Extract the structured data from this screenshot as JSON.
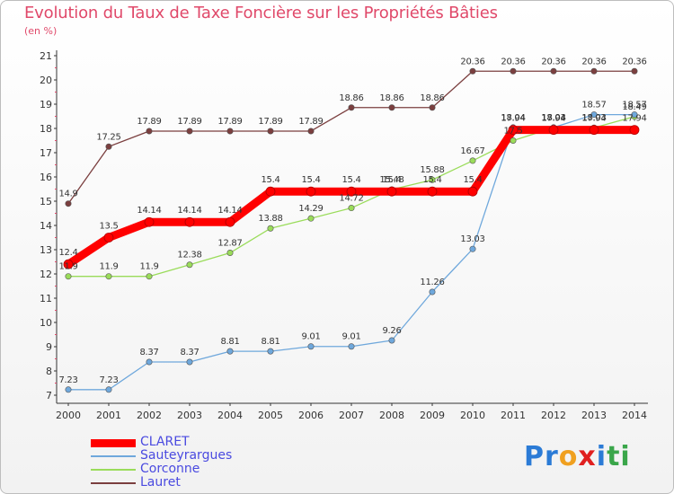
{
  "title": "Evolution du Taux de Taxe Foncière sur les Propriétés Bâties",
  "subtitle": "(en %)",
  "logo": {
    "text": "Proxiti",
    "letter_colors": [
      "#2b7bd6",
      "#2b7bd6",
      "#f0a020",
      "#e02020",
      "#2b7bd6",
      "#3aa64a",
      "#3aa64a"
    ]
  },
  "chart_data": {
    "type": "line",
    "title": "Evolution du Taux de Taxe Foncière sur les Propriétés Bâties",
    "ylabel": "(en %)",
    "xlabel": "",
    "ylim": [
      7,
      21
    ],
    "grid": false,
    "x": [
      "2000",
      "2001",
      "2002",
      "2003",
      "2004",
      "2005",
      "2006",
      "2007",
      "2008",
      "2009",
      "2010",
      "2011",
      "2012",
      "2013",
      "2014"
    ],
    "series": [
      {
        "name": "CLARET",
        "color": "#ff0000",
        "values": [
          12.4,
          13.5,
          14.14,
          14.14,
          14.14,
          15.4,
          15.4,
          15.4,
          15.4,
          15.4,
          15.4,
          17.94,
          17.94,
          17.94,
          17.94
        ],
        "labels": [
          "12.4",
          "13.5",
          "14.14",
          "14.14",
          "14.14",
          "15.4",
          "15.4",
          "15.4",
          "15.4",
          "15.4",
          "15.4",
          "17.94",
          "17.94",
          "17.94",
          "17.94"
        ]
      },
      {
        "name": "Sauteyrargues",
        "color": "#6fa8dc",
        "values": [
          7.23,
          7.23,
          8.37,
          8.37,
          8.81,
          8.81,
          9.01,
          9.01,
          9.26,
          11.26,
          13.03,
          18.04,
          18.04,
          18.57,
          18.57
        ],
        "labels": [
          "7.23",
          "7.23",
          "8.37",
          "8.37",
          "8.81",
          "8.81",
          "9.01",
          "9.01",
          "9.26",
          "11.26",
          "13.03",
          "18.04",
          "18.04",
          "18.57",
          "18.57"
        ]
      },
      {
        "name": "Corconne",
        "color": "#9adc5a",
        "values": [
          11.9,
          11.9,
          11.9,
          12.38,
          12.87,
          13.88,
          14.29,
          14.72,
          15.48,
          15.88,
          16.67,
          17.5,
          18.03,
          18.03,
          18.49
        ],
        "labels": [
          "11.9",
          "11.9",
          "11.9",
          "12.38",
          "12.87",
          "13.88",
          "14.29",
          "14.72",
          "15.48",
          "15.88",
          "16.67",
          "17.5",
          "18.03",
          "18.03",
          "18.49"
        ]
      },
      {
        "name": "Lauret",
        "color": "#7b3f3f",
        "values": [
          14.9,
          17.25,
          17.89,
          17.89,
          17.89,
          17.89,
          17.89,
          18.86,
          18.86,
          18.86,
          20.36,
          20.36,
          20.36,
          20.36,
          20.36
        ],
        "labels": [
          "14.9",
          "17.25",
          "17.89",
          "17.89",
          "17.89",
          "17.89",
          "17.89",
          "18.86",
          "18.86",
          "18.86",
          "20.36",
          "20.36",
          "20.36",
          "20.36",
          "20.36"
        ]
      }
    ],
    "yticks": [
      "7",
      "8",
      "9",
      "10",
      "11",
      "12",
      "13",
      "14",
      "15",
      "16",
      "17",
      "18",
      "19",
      "20",
      "21"
    ],
    "legend_position": "bottom-left"
  }
}
